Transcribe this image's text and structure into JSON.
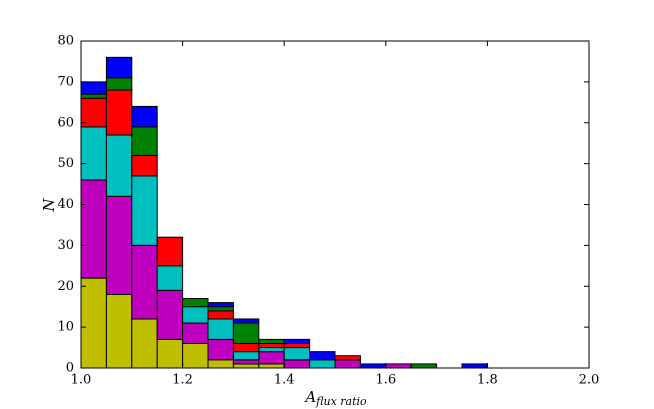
{
  "chart_data": {
    "type": "histogram",
    "xlabel": {
      "main": "A",
      "sub": "flux ratio"
    },
    "ylabel": "N",
    "bins": [
      1.0,
      1.05,
      1.1,
      1.15,
      1.2,
      1.25,
      1.3,
      1.35,
      1.4,
      1.45,
      1.5,
      1.55,
      1.6,
      1.65,
      1.7,
      1.75,
      1.8,
      1.85,
      1.9,
      1.95,
      2.0
    ],
    "stacked": true,
    "series": [
      {
        "color": "#bfbf00",
        "values": [
          22,
          18,
          12,
          7,
          6,
          2,
          1,
          1,
          0,
          0,
          0,
          0,
          0,
          0,
          0,
          0,
          0,
          0,
          0,
          0
        ]
      },
      {
        "color": "#bf00bf",
        "values": [
          24,
          24,
          18,
          12,
          5,
          5,
          1,
          3,
          2,
          0,
          2,
          0,
          1,
          0,
          0,
          0,
          0,
          0,
          0,
          0
        ]
      },
      {
        "color": "#00bfbf",
        "values": [
          13,
          15,
          17,
          6,
          4,
          5,
          2,
          1,
          3,
          2,
          0,
          0,
          0,
          0,
          0,
          0,
          0,
          0,
          0,
          0
        ]
      },
      {
        "color": "#ff0000",
        "values": [
          7,
          11,
          5,
          7,
          0,
          2,
          2,
          1,
          1,
          0,
          1,
          0,
          0,
          0,
          0,
          0,
          0,
          0,
          0,
          0
        ]
      },
      {
        "color": "#008000",
        "values": [
          1,
          3,
          7,
          0,
          2,
          1,
          5,
          1,
          0,
          0,
          0,
          0,
          0,
          1,
          0,
          0,
          0,
          0,
          0,
          0
        ]
      },
      {
        "color": "#0000ff",
        "values": [
          3,
          5,
          5,
          0,
          0,
          1,
          1,
          0,
          1,
          2,
          0,
          1,
          0,
          0,
          0,
          1,
          0,
          0,
          0,
          0
        ]
      }
    ],
    "xlim": [
      1.0,
      2.0
    ],
    "xticks": [
      {
        "value": 1.0,
        "label": "1.0"
      },
      1.2,
      1.4,
      1.6,
      1.8,
      {
        "value": 2.0,
        "label": "2.0"
      }
    ],
    "ylim": [
      0,
      80
    ],
    "yticks": [
      0,
      10,
      20,
      30,
      40,
      50,
      60,
      70,
      80
    ]
  }
}
